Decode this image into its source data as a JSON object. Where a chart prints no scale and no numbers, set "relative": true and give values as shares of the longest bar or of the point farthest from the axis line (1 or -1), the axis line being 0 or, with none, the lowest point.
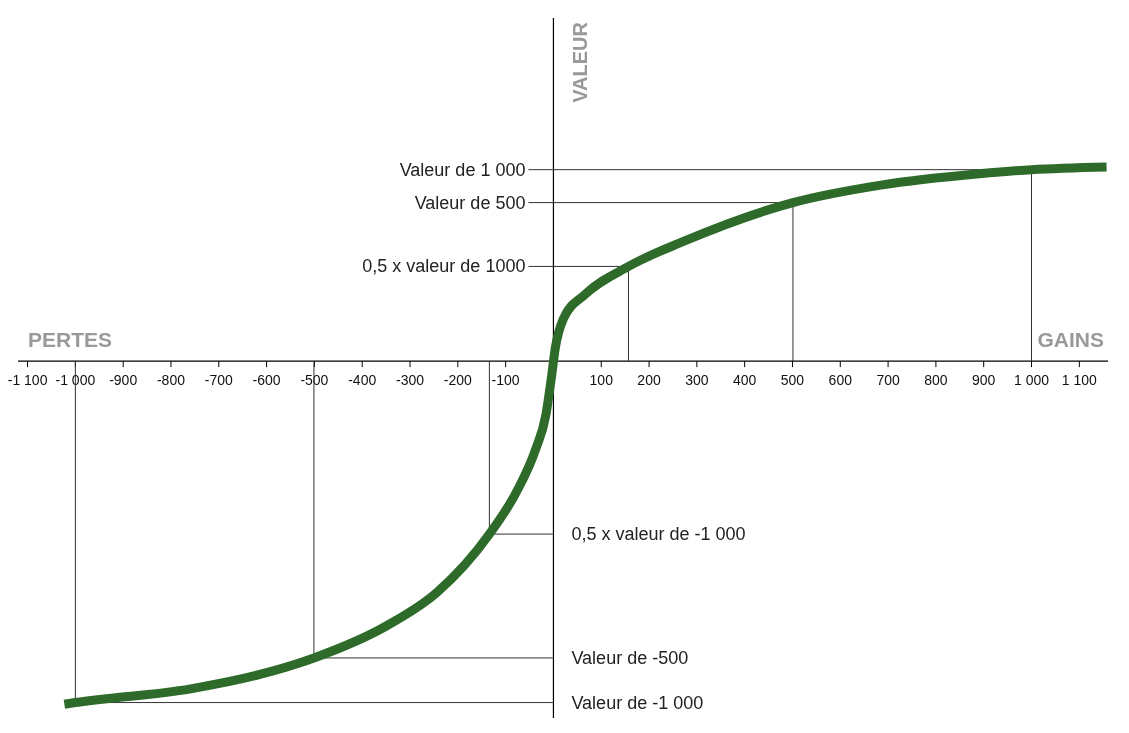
{
  "chart_data": {
    "type": "line",
    "relative": true,
    "ylabel": "VALEUR",
    "annotations": [
      "PERTES",
      "GAINS"
    ],
    "ref_lines": [
      {
        "axis": "y",
        "value": 0.558,
        "label": "Valeur de 1 000"
      },
      {
        "axis": "y",
        "value": 0.462,
        "label": "Valeur de 500"
      },
      {
        "axis": "y",
        "value": 0.276,
        "label": "0,5 x valeur de 1000"
      },
      {
        "axis": "y",
        "value": -0.504,
        "label": "0,5 x valeur de -1 000"
      },
      {
        "axis": "y",
        "value": -0.865,
        "label": "Valeur de -500"
      },
      {
        "axis": "y",
        "value": -0.995,
        "label": "Valeur de -1 000"
      },
      {
        "axis": "x",
        "value": 1000
      },
      {
        "axis": "x",
        "value": 501
      },
      {
        "axis": "x",
        "value": 157
      },
      {
        "axis": "x",
        "value": -134
      },
      {
        "axis": "x",
        "value": -501
      },
      {
        "axis": "x",
        "value": -1000
      }
    ],
    "x": [
      -1023,
      -1000,
      -759,
      -614,
      -501,
      -346,
      -243,
      -134,
      -78,
      -37,
      -16,
      -4,
      4,
      21,
      66,
      157,
      272,
      501,
      685,
      891,
      1000,
      1157
    ],
    "series": [
      {
        "color": "#2e6b2a",
        "values": [
          -1.0,
          -0.995,
          -0.955,
          -0.913,
          -0.865,
          -0.769,
          -0.673,
          -0.504,
          -0.383,
          -0.256,
          -0.158,
          -0.045,
          0.039,
          0.124,
          0.194,
          0.276,
          0.349,
          0.462,
          0.513,
          0.546,
          0.558,
          0.566
        ]
      }
    ],
    "xlim": [
      -1120,
      1160
    ],
    "xticks": [
      {
        "value": -1100,
        "label": "-1 100"
      },
      {
        "value": -1000,
        "label": "-1 000"
      },
      -900,
      -800,
      -700,
      -600,
      -500,
      -400,
      -300,
      -200,
      -100,
      100,
      200,
      300,
      400,
      500,
      600,
      700,
      800,
      900,
      {
        "value": 1000,
        "label": "1 000"
      },
      {
        "value": 1100,
        "label": "1 100"
      }
    ]
  }
}
